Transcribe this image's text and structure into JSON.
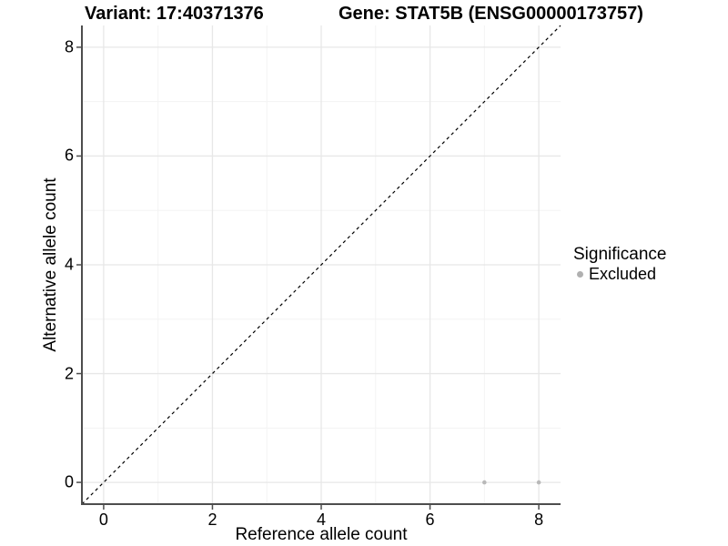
{
  "titles": {
    "variant": "Variant: 17:40371376",
    "gene": "Gene: STAT5B (ENSG00000173757)"
  },
  "chart_data": {
    "type": "scatter",
    "title_left": "Variant: 17:40371376",
    "title_right": "Gene: STAT5B (ENSG00000173757)",
    "xlabel": "Reference allele count",
    "ylabel": "Alternative allele count",
    "xlim": [
      -0.4,
      8.4
    ],
    "ylim": [
      -0.4,
      8.4
    ],
    "xticks": [
      0,
      2,
      4,
      6,
      8
    ],
    "yticks": [
      0,
      2,
      4,
      6,
      8
    ],
    "minor_xticks": [
      1,
      3,
      5,
      7
    ],
    "minor_yticks": [
      1,
      3,
      5,
      7
    ],
    "grid": true,
    "identity_line": {
      "type": "abline",
      "slope": 1,
      "intercept": 0,
      "style": "dashed"
    },
    "series": [
      {
        "name": "Excluded",
        "points": [
          {
            "x": 7,
            "y": 0
          },
          {
            "x": 8,
            "y": 0
          }
        ]
      }
    ],
    "legend": {
      "title": "Significance",
      "position": "right",
      "items": [
        {
          "label": "Excluded"
        }
      ]
    }
  },
  "colors": {
    "background": "#ffffff",
    "axis_line": "#4d4d4d",
    "grid_major": "#e7e7e7",
    "grid_minor": "#f3f3f3",
    "point": "#b9b9b9",
    "legend_dot": "#b0b0b0",
    "identity_line": "#000000",
    "text": "#000000"
  }
}
